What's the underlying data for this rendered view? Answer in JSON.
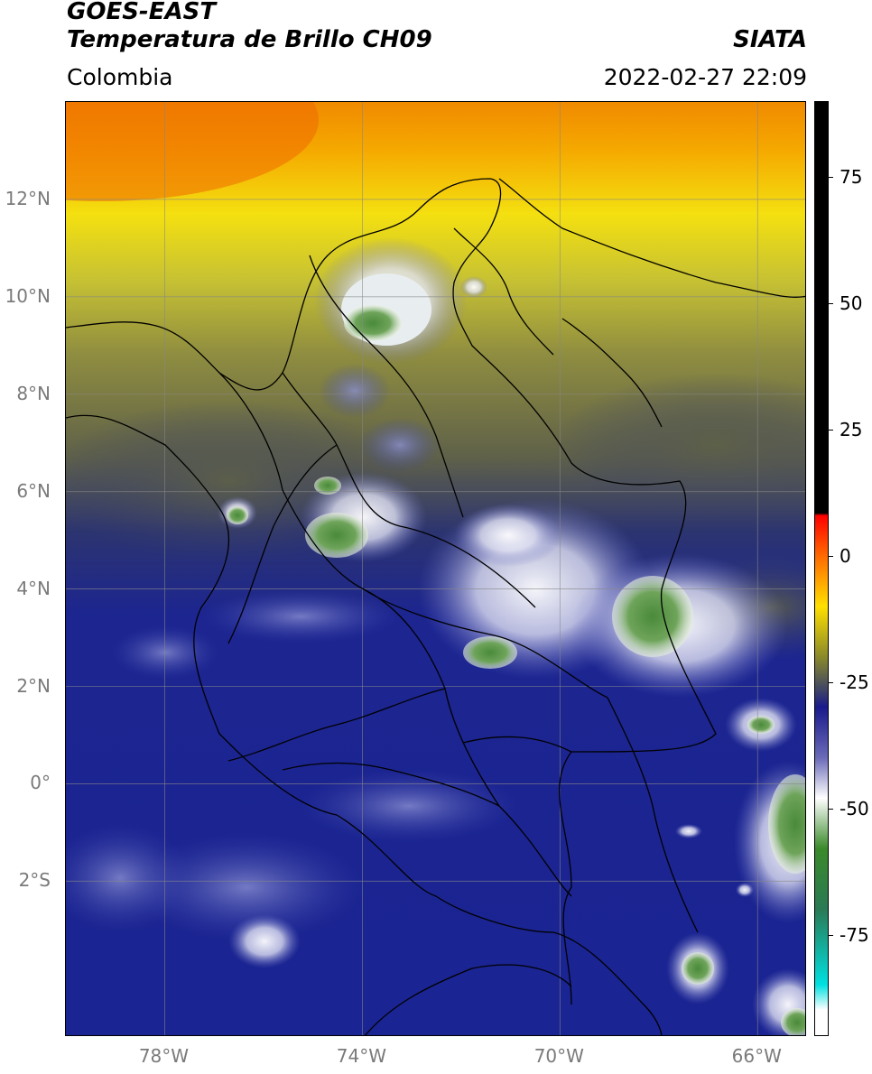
{
  "header": {
    "title_line1": "GOES-EAST",
    "title_line2": "Temperatura de Brillo CH09",
    "brand": "SIATA",
    "region": "Colombia",
    "timestamp": "2022-02-27 22:09"
  },
  "map": {
    "lat_labels": [
      {
        "value": 12,
        "text": "12°N"
      },
      {
        "value": 10,
        "text": "10°N"
      },
      {
        "value": 8,
        "text": "8°N"
      },
      {
        "value": 6,
        "text": "6°N"
      },
      {
        "value": 4,
        "text": "4°N"
      },
      {
        "value": 2,
        "text": "2°N"
      },
      {
        "value": 0,
        "text": "0°"
      },
      {
        "value": -2,
        "text": "2°S"
      }
    ],
    "lon_labels": [
      {
        "value": -78,
        "text": "78°W"
      },
      {
        "value": -74,
        "text": "74°W"
      },
      {
        "value": -70,
        "text": "70°W"
      },
      {
        "value": -66,
        "text": "66°W"
      }
    ],
    "extent": {
      "lon_min": -80,
      "lon_max": -65,
      "lat_min": -5.2,
      "lat_max": 14
    },
    "gridline_color": "#888888"
  },
  "colorbar": {
    "min": -95,
    "max": 90,
    "tick_labels": [
      {
        "value": 75,
        "text": "75"
      },
      {
        "value": 50,
        "text": "50"
      },
      {
        "value": 25,
        "text": "25"
      },
      {
        "value": 0,
        "text": "0"
      },
      {
        "value": -25,
        "text": "-25"
      },
      {
        "value": -50,
        "text": "-50"
      },
      {
        "value": -75,
        "text": "-75"
      }
    ],
    "stops": [
      {
        "value": 90,
        "color": "#000000"
      },
      {
        "value": 8.5,
        "color": "#000000"
      },
      {
        "value": 8,
        "color": "#ff0000"
      },
      {
        "value": 0,
        "color": "#ff6a00"
      },
      {
        "value": -10,
        "color": "#ffe000"
      },
      {
        "value": -20,
        "color": "#8a8a2a"
      },
      {
        "value": -27,
        "color": "#3a3f6a"
      },
      {
        "value": -30,
        "color": "#1a1a8c"
      },
      {
        "value": -40,
        "color": "#6a6ab8"
      },
      {
        "value": -48,
        "color": "#ffffff"
      },
      {
        "value": -58,
        "color": "#3a8a2a"
      },
      {
        "value": -70,
        "color": "#2a7a55"
      },
      {
        "value": -85,
        "color": "#00e0e0"
      },
      {
        "value": -90,
        "color": "#ffffff"
      },
      {
        "value": -95,
        "color": "#ffffff"
      }
    ]
  }
}
